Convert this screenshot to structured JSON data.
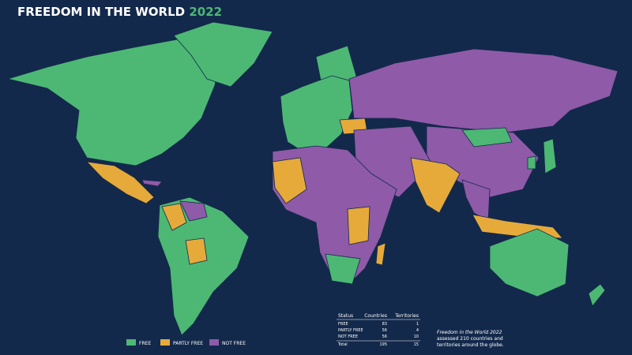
{
  "header": {
    "title": "FREEDOM IN THE WORLD",
    "year": "2022"
  },
  "legend": [
    {
      "label": "FREE",
      "color": "#4cb874"
    },
    {
      "label": "PARTLY FREE",
      "color": "#e6aa3a"
    },
    {
      "label": "NOT FREE",
      "color": "#8f5aa8"
    }
  ],
  "table": {
    "columns": [
      "Status",
      "Countries",
      "Territories"
    ],
    "rows": [
      [
        "FREE",
        83,
        1
      ],
      [
        "PARTLY FREE",
        56,
        4
      ],
      [
        "NOT FREE",
        56,
        10
      ],
      [
        "Total",
        195,
        15
      ]
    ]
  },
  "note": {
    "emph": "Freedom in the World 2022",
    "text": "assessed 210 countries and territories around the globe."
  }
}
